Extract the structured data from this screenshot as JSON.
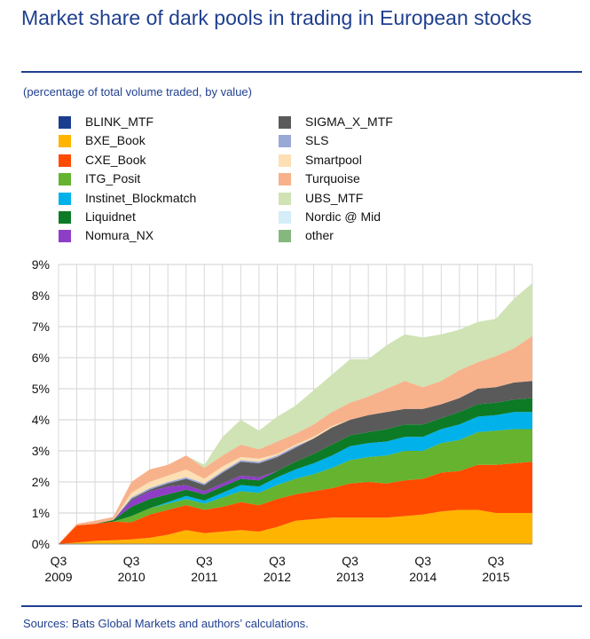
{
  "title": "Market share of dark pools in trading in European stocks",
  "subtitle": "(percentage of total volume traded, by value)",
  "source": "Sources: Bats Global Markets and authors’ calculations.",
  "chart_data": {
    "type": "area",
    "stacked": true,
    "ylim": [
      0,
      9
    ],
    "y_ticks": [
      "0%",
      "1%",
      "2%",
      "3%",
      "4%",
      "5%",
      "6%",
      "7%",
      "8%",
      "9%"
    ],
    "x_ticks": [
      {
        "line1": "Q3",
        "line2": "2009",
        "index": 0
      },
      {
        "line1": "Q3",
        "line2": "2010",
        "index": 4
      },
      {
        "line1": "Q3",
        "line2": "2011",
        "index": 8
      },
      {
        "line1": "Q3",
        "line2": "2012",
        "index": 12
      },
      {
        "line1": "Q3",
        "line2": "2013",
        "index": 16
      },
      {
        "line1": "Q3",
        "line2": "2014",
        "index": 20
      },
      {
        "line1": "Q3",
        "line2": "2015",
        "index": 24
      }
    ],
    "x": [
      "Q3 2009",
      "Q4 2009",
      "Q1 2010",
      "Q2 2010",
      "Q3 2010",
      "Q4 2010",
      "Q1 2011",
      "Q2 2011",
      "Q3 2011",
      "Q4 2011",
      "Q1 2012",
      "Q2 2012",
      "Q3 2012",
      "Q4 2012",
      "Q1 2013",
      "Q2 2013",
      "Q3 2013",
      "Q4 2013",
      "Q1 2014",
      "Q2 2014",
      "Q3 2014",
      "Q4 2014",
      "Q1 2015",
      "Q2 2015",
      "Q3 2015",
      "Q4 2015",
      "Q1 2016"
    ],
    "grid": true,
    "legend_position": "top",
    "series": [
      {
        "name": "BXE_Book",
        "color": "#ffb400",
        "values": [
          0,
          0.05,
          0.1,
          0.12,
          0.15,
          0.2,
          0.3,
          0.45,
          0.35,
          0.4,
          0.45,
          0.4,
          0.55,
          0.75,
          0.8,
          0.85,
          0.85,
          0.85,
          0.85,
          0.9,
          0.95,
          1.05,
          1.1,
          1.1,
          1.0,
          1.0,
          1.0
        ]
      },
      {
        "name": "CXE_Book",
        "color": "#ff4b00",
        "values": [
          0,
          0.55,
          0.55,
          0.6,
          0.55,
          0.75,
          0.8,
          0.8,
          0.75,
          0.8,
          0.9,
          0.85,
          0.9,
          0.85,
          0.9,
          0.95,
          1.1,
          1.15,
          1.1,
          1.15,
          1.15,
          1.25,
          1.25,
          1.45,
          1.55,
          1.6,
          1.65
        ]
      },
      {
        "name": "ITG_Posit",
        "color": "#65b32e",
        "values": [
          0,
          0,
          0,
          0,
          0.2,
          0.2,
          0.2,
          0.2,
          0.2,
          0.3,
          0.35,
          0.4,
          0.45,
          0.5,
          0.55,
          0.65,
          0.75,
          0.8,
          0.9,
          0.95,
          0.9,
          0.95,
          1.0,
          1.05,
          1.1,
          1.1,
          1.05
        ]
      },
      {
        "name": "Instinet_Blockmatch",
        "color": "#00b1ea",
        "values": [
          0,
          0,
          0,
          0,
          0,
          0,
          0.05,
          0.1,
          0.1,
          0.15,
          0.2,
          0.2,
          0.25,
          0.3,
          0.35,
          0.4,
          0.45,
          0.45,
          0.45,
          0.45,
          0.45,
          0.45,
          0.5,
          0.5,
          0.5,
          0.55,
          0.55
        ]
      },
      {
        "name": "Liquidnet",
        "color": "#0d7a26",
        "values": [
          0,
          0,
          0,
          0.05,
          0.3,
          0.3,
          0.25,
          0.2,
          0.2,
          0.2,
          0.2,
          0.2,
          0.2,
          0.25,
          0.3,
          0.35,
          0.35,
          0.35,
          0.4,
          0.4,
          0.4,
          0.35,
          0.4,
          0.4,
          0.4,
          0.4,
          0.45
        ]
      },
      {
        "name": "Nomura_NX",
        "color": "#8e3ec6",
        "values": [
          0,
          0,
          0,
          0,
          0.2,
          0.25,
          0.25,
          0.15,
          0.1,
          0.1,
          0.1,
          0.1,
          0,
          0,
          0,
          0,
          0,
          0,
          0,
          0,
          0,
          0,
          0,
          0,
          0,
          0,
          0
        ]
      },
      {
        "name": "SIGMA_X_MTF",
        "color": "#5a5a5a",
        "values": [
          0,
          0,
          0,
          0,
          0.05,
          0.05,
          0.1,
          0.2,
          0.2,
          0.35,
          0.45,
          0.45,
          0.45,
          0.45,
          0.5,
          0.55,
          0.5,
          0.55,
          0.55,
          0.5,
          0.5,
          0.45,
          0.45,
          0.5,
          0.5,
          0.55,
          0.55
        ]
      },
      {
        "name": "SLS",
        "color": "#9aa8d8",
        "values": [
          0,
          0,
          0,
          0,
          0.05,
          0.05,
          0.05,
          0.05,
          0.05,
          0.05,
          0.05,
          0.05,
          0.05,
          0.05,
          0,
          0,
          0,
          0,
          0,
          0,
          0,
          0,
          0,
          0,
          0,
          0,
          0
        ]
      },
      {
        "name": "Smartpool",
        "color": "#fce0b4",
        "values": [
          0,
          0,
          0,
          0,
          0.15,
          0.2,
          0.2,
          0.25,
          0.15,
          0.15,
          0.1,
          0.1,
          0.05,
          0.05,
          0.05,
          0.05,
          0,
          0,
          0,
          0,
          0,
          0,
          0,
          0,
          0,
          0,
          0
        ]
      },
      {
        "name": "Turquoise",
        "color": "#f7b28c",
        "values": [
          0,
          0.05,
          0.1,
          0.1,
          0.35,
          0.4,
          0.35,
          0.45,
          0.35,
          0.35,
          0.4,
          0.3,
          0.4,
          0.35,
          0.4,
          0.45,
          0.55,
          0.6,
          0.75,
          0.9,
          0.7,
          0.75,
          0.9,
          0.85,
          1.0,
          1.1,
          1.45
        ]
      },
      {
        "name": "UBS_MTF",
        "color": "#cfe3b4",
        "values": [
          0,
          0,
          0,
          0,
          0,
          0,
          0,
          0,
          0.1,
          0.6,
          0.8,
          0.6,
          0.8,
          0.9,
          1.1,
          1.2,
          1.4,
          1.2,
          1.4,
          1.5,
          1.6,
          1.5,
          1.3,
          1.3,
          1.2,
          1.6,
          1.7
        ]
      },
      {
        "name": "Nordic @ Mid",
        "color": "#d4edf8",
        "values": [
          0,
          0,
          0,
          0,
          0,
          0,
          0,
          0,
          0,
          0,
          0,
          0,
          0,
          0,
          0,
          0,
          0,
          0,
          0,
          0,
          0,
          0,
          0,
          0,
          0,
          0,
          0
        ]
      },
      {
        "name": "other",
        "color": "#85b77f",
        "values": [
          0,
          0,
          0,
          0,
          0,
          0,
          0,
          0,
          0,
          0,
          0,
          0,
          0,
          0,
          0,
          0,
          0,
          0,
          0,
          0,
          0,
          0,
          0,
          0,
          0,
          0,
          0
        ]
      },
      {
        "name": "BLINK_MTF",
        "color": "#1a3d8f",
        "values": [
          0,
          0,
          0,
          0,
          0,
          0,
          0,
          0,
          0,
          0,
          0,
          0,
          0,
          0,
          0,
          0,
          0,
          0,
          0,
          0,
          0,
          0,
          0,
          0,
          0,
          0,
          0
        ]
      }
    ],
    "legend": {
      "left": [
        {
          "label": "BLINK_MTF",
          "color": "#1a3d8f"
        },
        {
          "label": "BXE_Book",
          "color": "#ffb400"
        },
        {
          "label": "CXE_Book",
          "color": "#ff4b00"
        },
        {
          "label": "ITG_Posit",
          "color": "#65b32e"
        },
        {
          "label": "Instinet_Blockmatch",
          "color": "#00b1ea"
        },
        {
          "label": "Liquidnet",
          "color": "#0d7a26"
        },
        {
          "label": "Nomura_NX",
          "color": "#8e3ec6"
        }
      ],
      "right": [
        {
          "label": "SIGMA_X_MTF",
          "color": "#5a5a5a"
        },
        {
          "label": "SLS",
          "color": "#9aa8d8"
        },
        {
          "label": "Smartpool",
          "color": "#fce0b4"
        },
        {
          "label": "Turquoise",
          "color": "#f7b28c"
        },
        {
          "label": "UBS_MTF",
          "color": "#cfe3b4"
        },
        {
          "label": "Nordic @ Mid",
          "color": "#d4edf8"
        },
        {
          "label": "other",
          "color": "#85b77f"
        }
      ]
    }
  }
}
